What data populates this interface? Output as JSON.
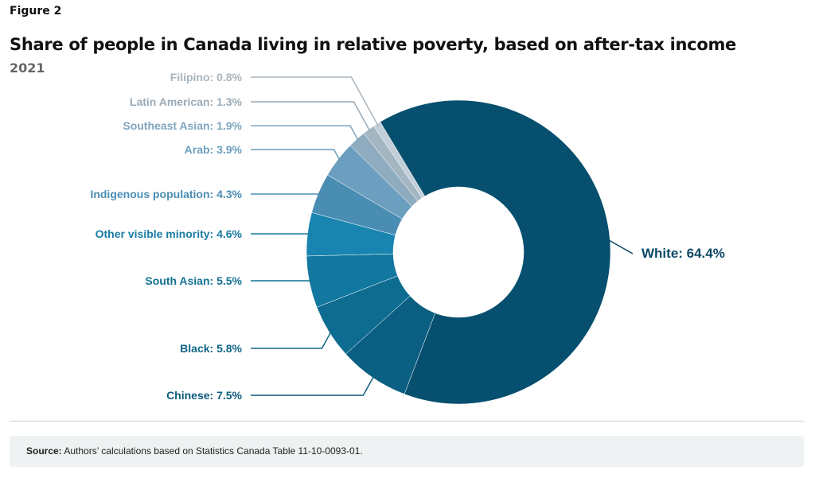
{
  "figure_label": "Figure 2",
  "source": {
    "label": "Source:",
    "text": " Authors’ calculations based on Statistics Canada Table 11-10-0093-01."
  },
  "chart_data": {
    "type": "pie",
    "donut": true,
    "title": "Share of people in Canada living in relative poverty, based on after-tax income",
    "subtitle": "2021",
    "unit": "%",
    "slices": [
      {
        "label": "White",
        "value": 64.4,
        "text": "White: 64.4%",
        "color": "#064f6e",
        "label_color": "#0b4a66"
      },
      {
        "label": "Chinese",
        "value": 7.5,
        "text": "Chinese: 7.5%",
        "color": "#0b5f82",
        "label_color": "#0e5c7d"
      },
      {
        "label": "Black",
        "value": 5.8,
        "text": "Black: 5.8%",
        "color": "#0e6c91",
        "label_color": "#0f6788"
      },
      {
        "label": "South Asian",
        "value": 5.5,
        "text": "South Asian: 5.5%",
        "color": "#12789f",
        "label_color": "#137194"
      },
      {
        "label": "Other visible minority",
        "value": 4.6,
        "text": "Other visible minority: 4.6%",
        "color": "#1884af",
        "label_color": "#1a7ba2"
      },
      {
        "label": "Indigenous population",
        "value": 4.3,
        "text": "Indigenous population: 4.3%",
        "color": "#4a8db3",
        "label_color": "#4a8db3"
      },
      {
        "label": "Arab",
        "value": 3.9,
        "text": "Arab: 3.9%",
        "color": "#6b9ebf",
        "label_color": "#6b9ebf"
      },
      {
        "label": "Southeast Asian",
        "value": 1.9,
        "text": "Southeast Asian: 1.9%",
        "color": "#8eabc0",
        "label_color": "#7ea5c0"
      },
      {
        "label": "Latin American",
        "value": 1.3,
        "text": "Latin American: 1.3%",
        "color": "#a5b6c3",
        "label_color": "#9aaab6"
      },
      {
        "label": "Filipino",
        "value": 0.8,
        "text": "Filipino: 0.8%",
        "color": "#c3cfd8",
        "label_color": "#a8b4bd"
      }
    ]
  }
}
